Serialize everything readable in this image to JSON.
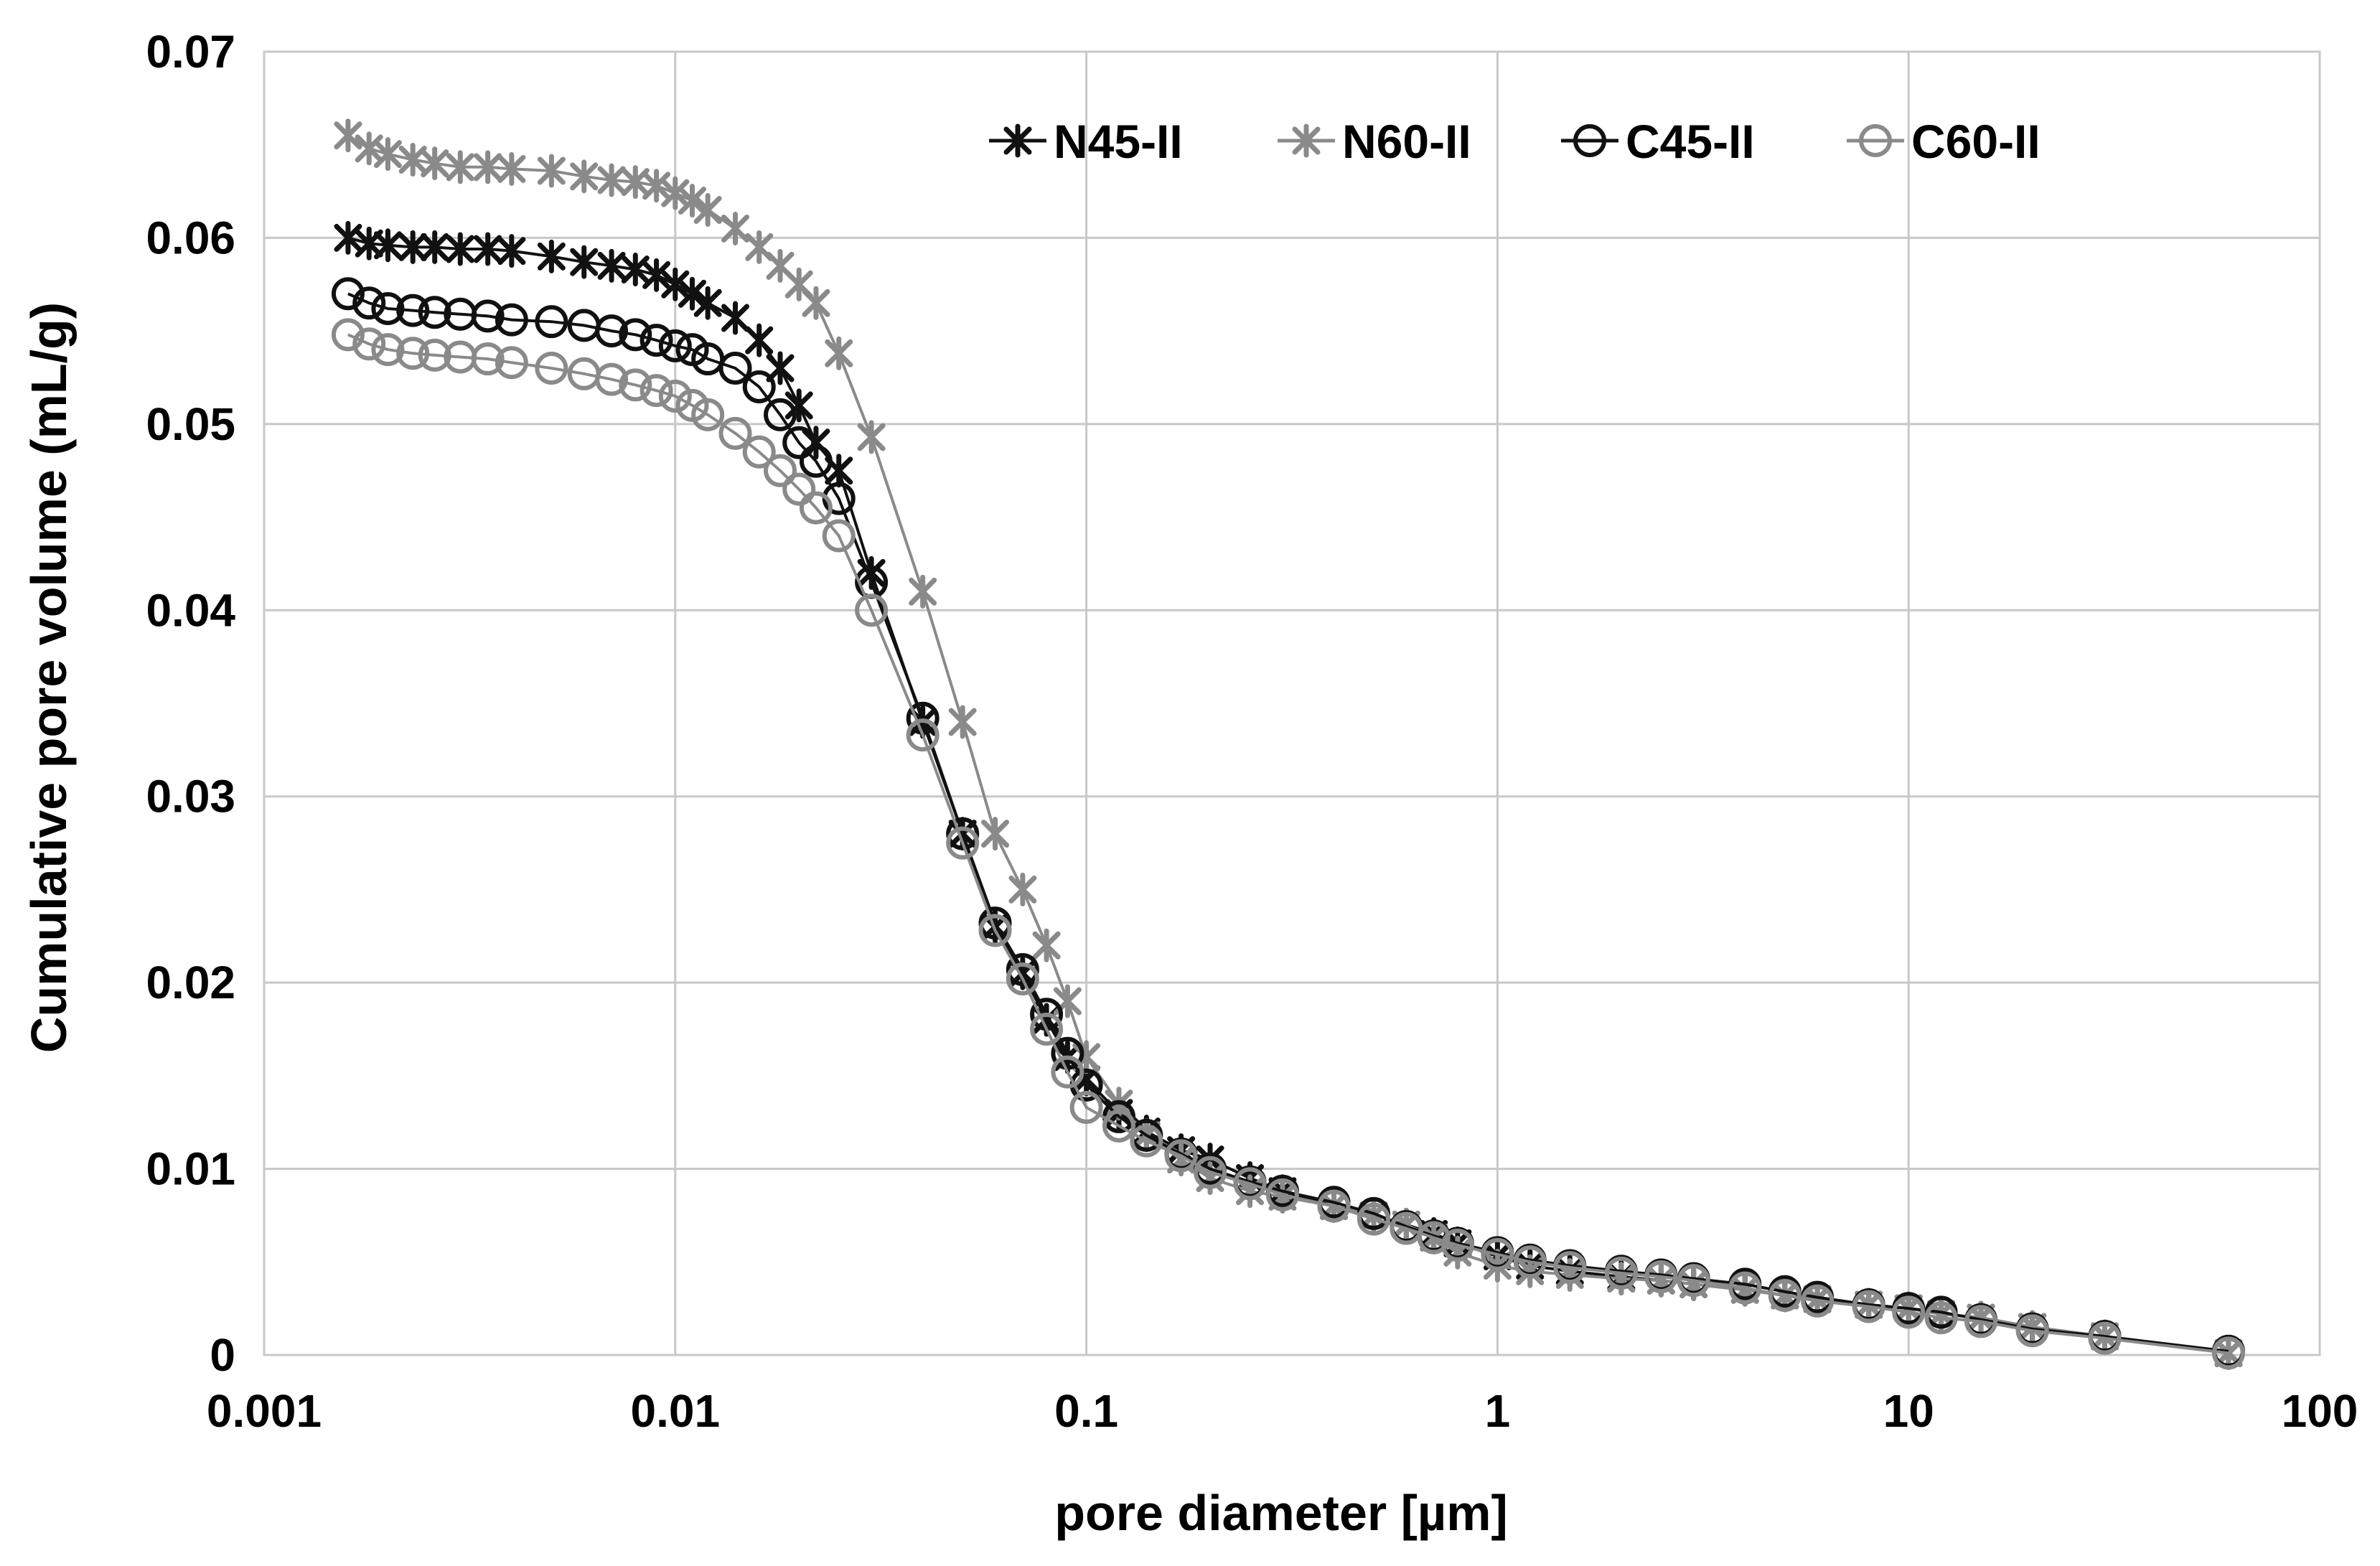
{
  "chart_data": {
    "type": "line",
    "title": "",
    "xlabel": "pore diameter [µm]",
    "ylabel": "Cumulative pore volume (mL/g)",
    "xscale": "log",
    "xlim": [
      0.001,
      100
    ],
    "ylim": [
      0,
      0.07
    ],
    "x_ticks": [
      "0.001",
      "0.01",
      "0.1",
      "1",
      "10",
      "100"
    ],
    "y_ticks": [
      "0",
      "0.01",
      "0.02",
      "0.03",
      "0.04",
      "0.05",
      "0.06",
      "0.07"
    ],
    "grid": true,
    "legend_position": "top",
    "series": [
      {
        "name": "N45-II",
        "color": "#111111",
        "marker": "star",
        "x": [
          0.0016,
          0.0018,
          0.002,
          0.0023,
          0.0026,
          0.003,
          0.0035,
          0.004,
          0.005,
          0.006,
          0.007,
          0.008,
          0.009,
          0.01,
          0.011,
          0.012,
          0.014,
          0.016,
          0.018,
          0.02,
          0.022,
          0.025,
          0.03,
          0.04,
          0.05,
          0.06,
          0.07,
          0.08,
          0.09,
          0.1,
          0.12,
          0.14,
          0.17,
          0.2,
          0.25,
          0.3,
          0.4,
          0.5,
          0.6,
          0.7,
          0.8,
          1,
          1.2,
          1.5,
          2,
          2.5,
          3,
          4,
          5,
          6,
          8,
          10,
          12,
          15,
          20,
          30,
          60
        ],
        "y": [
          0.06,
          0.0597,
          0.0596,
          0.0595,
          0.0595,
          0.0594,
          0.0594,
          0.0593,
          0.059,
          0.0587,
          0.0585,
          0.0583,
          0.058,
          0.0575,
          0.057,
          0.0565,
          0.0557,
          0.0545,
          0.053,
          0.051,
          0.049,
          0.0475,
          0.042,
          0.034,
          0.028,
          0.023,
          0.0205,
          0.018,
          0.016,
          0.0148,
          0.013,
          0.012,
          0.011,
          0.0105,
          0.0095,
          0.0088,
          0.008,
          0.0075,
          0.007,
          0.0065,
          0.006,
          0.0053,
          0.0048,
          0.0045,
          0.0042,
          0.004,
          0.0038,
          0.0035,
          0.0032,
          0.003,
          0.0027,
          0.0025,
          0.0022,
          0.002,
          0.0015,
          0.001,
          0.0001
        ]
      },
      {
        "name": "N60-II",
        "color": "#8a8a8a",
        "marker": "star",
        "x": [
          0.0016,
          0.0018,
          0.002,
          0.0023,
          0.0026,
          0.003,
          0.0035,
          0.004,
          0.005,
          0.006,
          0.007,
          0.008,
          0.009,
          0.01,
          0.011,
          0.012,
          0.014,
          0.016,
          0.018,
          0.02,
          0.022,
          0.025,
          0.03,
          0.04,
          0.05,
          0.06,
          0.07,
          0.08,
          0.09,
          0.1,
          0.12,
          0.14,
          0.17,
          0.2,
          0.25,
          0.3,
          0.4,
          0.5,
          0.6,
          0.7,
          0.8,
          1,
          1.2,
          1.5,
          2,
          2.5,
          3,
          4,
          5,
          6,
          8,
          10,
          12,
          15,
          20,
          30,
          60
        ],
        "y": [
          0.0655,
          0.0648,
          0.0645,
          0.0642,
          0.064,
          0.0638,
          0.0638,
          0.0637,
          0.0636,
          0.0633,
          0.0631,
          0.063,
          0.0628,
          0.0624,
          0.062,
          0.0615,
          0.0605,
          0.0595,
          0.0585,
          0.0575,
          0.0565,
          0.0538,
          0.0493,
          0.041,
          0.034,
          0.028,
          0.025,
          0.022,
          0.019,
          0.016,
          0.0135,
          0.0118,
          0.0105,
          0.0095,
          0.0088,
          0.0085,
          0.008,
          0.0075,
          0.007,
          0.0063,
          0.0055,
          0.0048,
          0.0045,
          0.0043,
          0.0041,
          0.004,
          0.0038,
          0.0035,
          0.0032,
          0.003,
          0.0027,
          0.0025,
          0.0022,
          0.002,
          0.0015,
          0.001,
          0.0001
        ]
      },
      {
        "name": "C45-II",
        "color": "#111111",
        "marker": "circle",
        "x": [
          0.0016,
          0.0018,
          0.002,
          0.0023,
          0.0026,
          0.003,
          0.0035,
          0.004,
          0.005,
          0.006,
          0.007,
          0.008,
          0.009,
          0.01,
          0.011,
          0.012,
          0.014,
          0.016,
          0.018,
          0.02,
          0.022,
          0.025,
          0.03,
          0.04,
          0.05,
          0.06,
          0.07,
          0.08,
          0.09,
          0.1,
          0.12,
          0.14,
          0.17,
          0.2,
          0.25,
          0.3,
          0.4,
          0.5,
          0.6,
          0.7,
          0.8,
          1,
          1.2,
          1.5,
          2,
          2.5,
          3,
          4,
          5,
          6,
          8,
          10,
          12,
          15,
          20,
          30,
          60
        ],
        "y": [
          0.057,
          0.0565,
          0.0562,
          0.0561,
          0.056,
          0.0559,
          0.0558,
          0.0556,
          0.0555,
          0.0553,
          0.055,
          0.0548,
          0.0545,
          0.0542,
          0.054,
          0.0535,
          0.053,
          0.052,
          0.0505,
          0.049,
          0.048,
          0.046,
          0.0415,
          0.0342,
          0.028,
          0.0232,
          0.0207,
          0.0183,
          0.0162,
          0.0145,
          0.0128,
          0.0118,
          0.0108,
          0.01,
          0.0093,
          0.0088,
          0.0082,
          0.0076,
          0.0069,
          0.0064,
          0.006,
          0.0055,
          0.0051,
          0.0048,
          0.0045,
          0.0043,
          0.0041,
          0.0038,
          0.0034,
          0.0031,
          0.0027,
          0.0025,
          0.0023,
          0.0019,
          0.0014,
          0.001,
          0.0002
        ]
      },
      {
        "name": "C60-II",
        "color": "#8a8a8a",
        "marker": "circle",
        "x": [
          0.0016,
          0.0018,
          0.002,
          0.0023,
          0.0026,
          0.003,
          0.0035,
          0.004,
          0.005,
          0.006,
          0.007,
          0.008,
          0.009,
          0.01,
          0.011,
          0.012,
          0.014,
          0.016,
          0.018,
          0.02,
          0.022,
          0.025,
          0.03,
          0.04,
          0.05,
          0.06,
          0.07,
          0.08,
          0.09,
          0.1,
          0.12,
          0.14,
          0.17,
          0.2,
          0.25,
          0.3,
          0.4,
          0.5,
          0.6,
          0.7,
          0.8,
          1,
          1.2,
          1.5,
          2,
          2.5,
          3,
          4,
          5,
          6,
          8,
          10,
          12,
          15,
          20,
          30,
          60
        ],
        "y": [
          0.0548,
          0.0543,
          0.054,
          0.0538,
          0.0537,
          0.0536,
          0.0535,
          0.0533,
          0.053,
          0.0527,
          0.0524,
          0.0521,
          0.0518,
          0.0515,
          0.051,
          0.0505,
          0.0495,
          0.0485,
          0.0475,
          0.0465,
          0.0455,
          0.044,
          0.04,
          0.0333,
          0.0275,
          0.0228,
          0.0202,
          0.0175,
          0.0152,
          0.0133,
          0.0123,
          0.0115,
          0.0107,
          0.0098,
          0.0092,
          0.0086,
          0.008,
          0.0073,
          0.0068,
          0.0063,
          0.0059,
          0.0054,
          0.005,
          0.0047,
          0.0044,
          0.0042,
          0.004,
          0.0036,
          0.0032,
          0.0029,
          0.0026,
          0.0023,
          0.002,
          0.0018,
          0.0013,
          0.0009,
          0.0001
        ]
      }
    ]
  }
}
